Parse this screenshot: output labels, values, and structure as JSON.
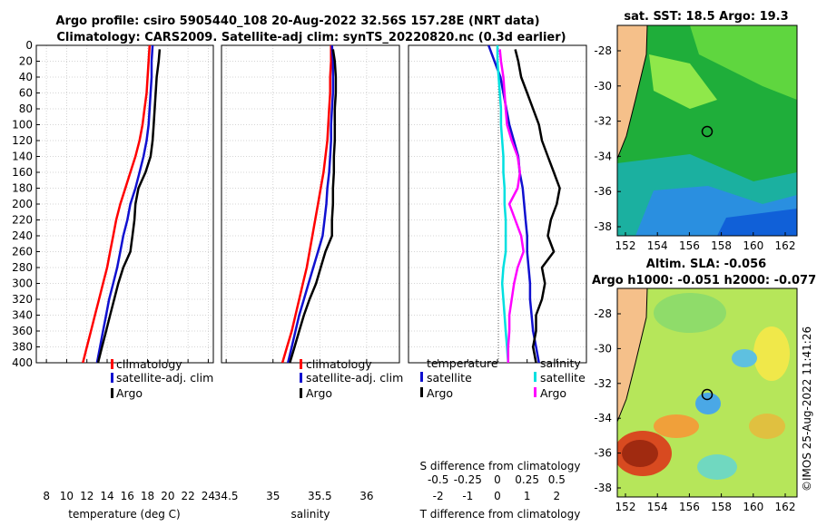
{
  "titles": {
    "line1": "Argo profile: csiro 5905440_108 20-Aug-2022 32.56S 157.28E (NRT data)",
    "line2": "Climatology: CARS2009. Satellite-adj clim: synTS_20220820.nc (0.3d earlier)",
    "sst": "sat. SST: 18.5 Argo: 19.3",
    "sla1": "Altim. SLA: -0.056",
    "sla2": "Argo h1000: -0.051 h2000: -0.077",
    "side": "©IMOS 25-Aug-2022 11:41:26"
  },
  "colors": {
    "climatology": "#ff0000",
    "satellite": "#1010d0",
    "argo": "#000000",
    "sat_sal": "#00e0e0",
    "sal_diff": "#ff00ff",
    "land": "#f5c08a"
  },
  "map_axes": {
    "lon_ticks": [
      "152",
      "154",
      "156",
      "158",
      "160",
      "162"
    ],
    "lat_ticks": [
      "-28",
      "-30",
      "-32",
      "-34",
      "-36",
      "-38"
    ]
  },
  "chart_data": [
    {
      "type": "line",
      "title": "",
      "xlabel": "temperature (deg C)",
      "ylabel": "",
      "xlim": [
        7,
        24.5
      ],
      "ylim": [
        400,
        0
      ],
      "x_ticks": [
        "8",
        "10",
        "12",
        "14",
        "16",
        "18",
        "20",
        "22",
        "24"
      ],
      "y_ticks": [
        "0",
        "20",
        "40",
        "60",
        "80",
        "100",
        "120",
        "140",
        "160",
        "180",
        "200",
        "220",
        "240",
        "260",
        "280",
        "300",
        "320",
        "340",
        "360",
        "380",
        "400"
      ],
      "legend": [
        "climatology",
        "satellite-adj. clim",
        "Argo"
      ],
      "series": [
        {
          "name": "climatology",
          "depth": [
            0,
            20,
            40,
            60,
            80,
            100,
            120,
            140,
            160,
            180,
            200,
            220,
            240,
            260,
            280,
            300,
            320,
            340,
            360,
            380,
            400
          ],
          "values": [
            18.2,
            18.1,
            18.0,
            17.9,
            17.7,
            17.5,
            17.2,
            16.8,
            16.3,
            15.8,
            15.3,
            14.9,
            14.6,
            14.3,
            14.0,
            13.6,
            13.2,
            12.8,
            12.4,
            12.0,
            11.6
          ]
        },
        {
          "name": "satellite-adj. clim",
          "depth": [
            0,
            20,
            40,
            60,
            80,
            100,
            120,
            140,
            160,
            180,
            200,
            220,
            240,
            260,
            280,
            300,
            320,
            340,
            360,
            380,
            400
          ],
          "values": [
            18.5,
            18.4,
            18.4,
            18.3,
            18.2,
            18.1,
            17.9,
            17.6,
            17.2,
            16.8,
            16.3,
            16.0,
            15.6,
            15.3,
            15.0,
            14.6,
            14.2,
            13.9,
            13.6,
            13.3,
            13.0
          ]
        },
        {
          "name": "Argo",
          "depth": [
            5,
            20,
            40,
            60,
            80,
            100,
            120,
            140,
            160,
            180,
            200,
            220,
            240,
            260,
            280,
            300,
            320,
            340,
            360,
            380,
            400
          ],
          "values": [
            19.2,
            19.1,
            18.9,
            18.8,
            18.7,
            18.6,
            18.5,
            18.3,
            17.8,
            17.1,
            16.8,
            16.7,
            16.5,
            16.3,
            15.6,
            15.1,
            14.7,
            14.3,
            13.9,
            13.5,
            13.1
          ]
        }
      ]
    },
    {
      "type": "line",
      "title": "",
      "xlabel": "salinity",
      "ylabel": "",
      "xlim": [
        34.45,
        36.35
      ],
      "ylim": [
        400,
        0
      ],
      "x_ticks": [
        "34.5",
        "35",
        "35.5",
        "36"
      ],
      "legend": [
        "climatology",
        "satellite-adj. clim",
        "Argo"
      ],
      "series": [
        {
          "name": "climatology",
          "depth": [
            0,
            20,
            40,
            60,
            80,
            100,
            120,
            140,
            160,
            180,
            200,
            220,
            240,
            260,
            280,
            300,
            320,
            340,
            360,
            380,
            400
          ],
          "values": [
            35.62,
            35.62,
            35.61,
            35.61,
            35.6,
            35.59,
            35.58,
            35.56,
            35.54,
            35.51,
            35.48,
            35.45,
            35.42,
            35.39,
            35.36,
            35.32,
            35.28,
            35.24,
            35.2,
            35.15,
            35.1
          ]
        },
        {
          "name": "satellite-adj. clim",
          "depth": [
            0,
            20,
            40,
            60,
            80,
            100,
            120,
            140,
            160,
            180,
            200,
            220,
            240,
            260,
            280,
            300,
            320,
            340,
            360,
            380,
            400
          ],
          "values": [
            35.63,
            35.64,
            35.64,
            35.64,
            35.63,
            35.62,
            35.62,
            35.61,
            35.6,
            35.58,
            35.57,
            35.55,
            35.53,
            35.48,
            35.43,
            35.38,
            35.33,
            35.28,
            35.24,
            35.2,
            35.16
          ]
        },
        {
          "name": "Argo",
          "depth": [
            5,
            20,
            40,
            60,
            80,
            100,
            120,
            140,
            160,
            180,
            200,
            220,
            240,
            260,
            280,
            300,
            320,
            340,
            360,
            380,
            400
          ],
          "values": [
            35.64,
            35.66,
            35.67,
            35.67,
            35.66,
            35.66,
            35.66,
            35.65,
            35.65,
            35.64,
            35.64,
            35.63,
            35.63,
            35.56,
            35.51,
            35.46,
            35.39,
            35.33,
            35.28,
            35.23,
            35.18
          ]
        }
      ]
    },
    {
      "type": "line",
      "title": "",
      "xlabel": "T difference from climatology",
      "xlabel_top": "S difference from climatology",
      "ylabel": "",
      "xlim": [
        -3,
        3
      ],
      "ylim": [
        400,
        0
      ],
      "x_ticks": [
        "-2",
        "-1",
        "0",
        "1",
        "2"
      ],
      "x_ticks_top": [
        "-0.5",
        "-0.25",
        "0",
        "0.25",
        "0.5"
      ],
      "legend_temperature": [
        "temperature",
        "satellite",
        "Argo"
      ],
      "legend_salinity": [
        "salinity",
        "satellite",
        "Argo"
      ],
      "series": [
        {
          "name": "T satellite",
          "depth": [
            0,
            20,
            40,
            60,
            80,
            100,
            120,
            140,
            160,
            180,
            200,
            220,
            240,
            260,
            280,
            300,
            320,
            340,
            360,
            380,
            400
          ],
          "values": [
            -0.3,
            -0.1,
            0.1,
            0.2,
            0.3,
            0.4,
            0.55,
            0.7,
            0.75,
            0.85,
            0.9,
            0.95,
            1.0,
            1.0,
            1.05,
            1.1,
            1.1,
            1.15,
            1.2,
            1.3,
            1.4
          ]
        },
        {
          "name": "T Argo",
          "depth": [
            5,
            20,
            40,
            60,
            80,
            100,
            120,
            140,
            160,
            180,
            200,
            220,
            240,
            260,
            280,
            300,
            320,
            340,
            360,
            380,
            400
          ],
          "values": [
            0.6,
            0.7,
            0.8,
            1.0,
            1.2,
            1.4,
            1.5,
            1.7,
            1.9,
            2.1,
            2.0,
            1.8,
            1.7,
            1.9,
            1.5,
            1.6,
            1.5,
            1.3,
            1.3,
            1.2,
            1.3
          ]
        },
        {
          "name": "S satellite",
          "depth": [
            0,
            20,
            40,
            60,
            80,
            100,
            120,
            140,
            160,
            180,
            200,
            220,
            240,
            260,
            280,
            300,
            320,
            340,
            360,
            380,
            400
          ],
          "values": [
            0.0,
            0.0,
            0.01,
            0.02,
            0.03,
            0.03,
            0.04,
            0.05,
            0.05,
            0.06,
            0.06,
            0.07,
            0.07,
            0.07,
            0.05,
            0.04,
            0.05,
            0.06,
            0.07,
            0.08,
            0.09
          ]
        },
        {
          "name": "S Argo",
          "depth": [
            5,
            20,
            40,
            60,
            80,
            100,
            120,
            140,
            160,
            180,
            200,
            220,
            240,
            260,
            280,
            300,
            320,
            340,
            360,
            380,
            400
          ],
          "values": [
            0.02,
            0.03,
            0.05,
            0.06,
            0.07,
            0.08,
            0.12,
            0.17,
            0.19,
            0.17,
            0.1,
            0.15,
            0.2,
            0.22,
            0.17,
            0.14,
            0.12,
            0.1,
            0.1,
            0.09,
            0.09
          ]
        }
      ]
    }
  ]
}
